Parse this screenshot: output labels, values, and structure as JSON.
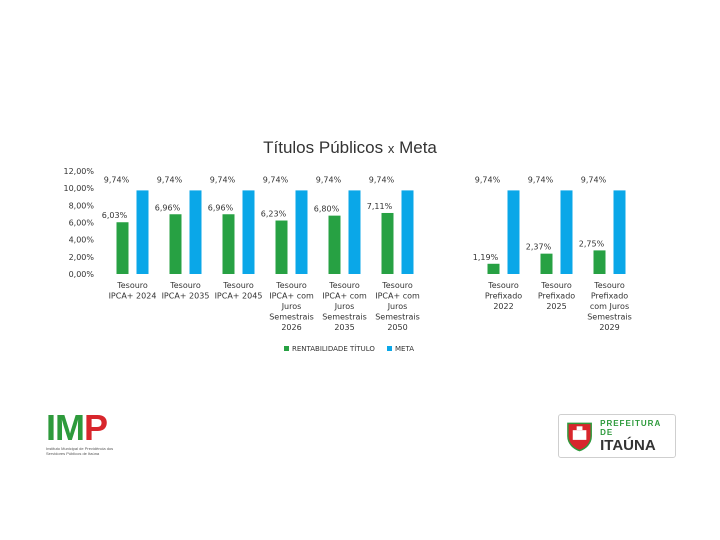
{
  "chart_data": {
    "type": "bar",
    "title": "Títulos Públicos x Meta",
    "title_main": "Títulos Públicos",
    "title_x": "x",
    "title_tail": "Meta",
    "ylim": [
      0,
      12
    ],
    "y_ticks": [
      "0,00%",
      "2,00%",
      "4,00%",
      "6,00%",
      "8,00%",
      "10,00%",
      "12,00%"
    ],
    "categories": [
      [
        "Tesouro",
        "IPCA+ 2024"
      ],
      [
        "Tesouro",
        "IPCA+ 2035"
      ],
      [
        "Tesouro",
        "IPCA+ 2045"
      ],
      [
        "Tesouro",
        "IPCA+ com",
        "Juros",
        "Semestrais",
        "2026"
      ],
      [
        "Tesouro",
        "IPCA+ com",
        "Juros",
        "Semestrais",
        "2035"
      ],
      [
        "Tesouro",
        "IPCA+ com",
        "Juros",
        "Semestrais",
        "2050"
      ],
      [
        "Tesouro",
        "Prefixado",
        "2022"
      ],
      [
        "Tesouro",
        "Prefixado",
        "2025"
      ],
      [
        "Tesouro",
        "Prefixado",
        "com Juros",
        "Semestrais",
        "2029"
      ]
    ],
    "series": [
      {
        "name": "RENTABILIDADE TÍTULO",
        "color": "#27a143",
        "values": [
          6.03,
          6.96,
          6.96,
          6.23,
          6.8,
          7.11,
          1.19,
          2.37,
          2.75
        ],
        "labels": [
          "6,03%",
          "6,96%",
          "6,96%",
          "6,23%",
          "6,80%",
          "7,11%",
          "1,19%",
          "2,37%",
          "2,75%"
        ]
      },
      {
        "name": "META",
        "color": "#0aa7e8",
        "values": [
          9.74,
          9.74,
          9.74,
          9.74,
          9.74,
          9.74,
          9.74,
          9.74,
          9.74
        ],
        "labels": [
          "9,74%",
          "9,74%",
          "9,74%",
          "9,74%",
          "9,74%",
          "9,74%",
          "9,74%",
          "9,74%",
          "9,74%"
        ]
      }
    ],
    "legend": [
      "RENTABILIDADE TÍTULO",
      "META"
    ],
    "legend_position": "bottom",
    "grid": false
  },
  "logos": {
    "imp": {
      "letters": [
        "I",
        "M",
        "P"
      ],
      "subtitle": "Instituto Municipal de Previdência dos Servidores Públicos de Itaúna"
    },
    "prefeitura": {
      "top": "PREFEITURA DE",
      "main": "ITAÚNA"
    }
  }
}
